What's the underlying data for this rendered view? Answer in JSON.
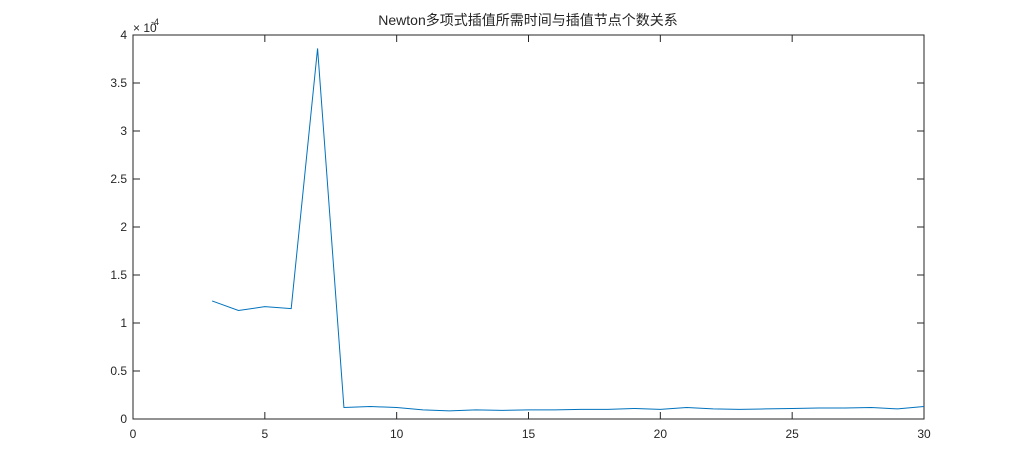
{
  "chart_data": {
    "type": "line",
    "title": "Newton多项式插值所需时间与插值节点个数关系",
    "xlabel": "",
    "ylabel": "",
    "y_multiplier": "× 10",
    "y_exponent": "-4",
    "xlim": [
      0,
      30
    ],
    "ylim": [
      0,
      4
    ],
    "x_ticks": [
      0,
      5,
      10,
      15,
      20,
      25,
      30
    ],
    "x_tick_labels": [
      "0",
      "5",
      "10",
      "15",
      "20",
      "25",
      "30"
    ],
    "y_ticks": [
      0,
      0.5,
      1,
      1.5,
      2,
      2.5,
      3,
      3.5,
      4
    ],
    "y_tick_labels": [
      "0",
      "0.5",
      "1",
      "1.5",
      "2",
      "2.5",
      "3",
      "3.5",
      "4"
    ],
    "grid": false,
    "line_color": "#0072BD",
    "x": [
      3,
      4,
      5,
      6,
      7,
      8,
      9,
      10,
      11,
      12,
      13,
      14,
      15,
      16,
      17,
      18,
      19,
      20,
      21,
      22,
      23,
      24,
      25,
      26,
      27,
      28,
      29,
      30
    ],
    "values": [
      1.23,
      1.13,
      1.17,
      1.15,
      3.86,
      0.12,
      0.13,
      0.12,
      0.095,
      0.085,
      0.095,
      0.09,
      0.095,
      0.095,
      0.1,
      0.1,
      0.11,
      0.1,
      0.12,
      0.105,
      0.1,
      0.105,
      0.11,
      0.115,
      0.115,
      0.12,
      0.105,
      0.13
    ]
  }
}
